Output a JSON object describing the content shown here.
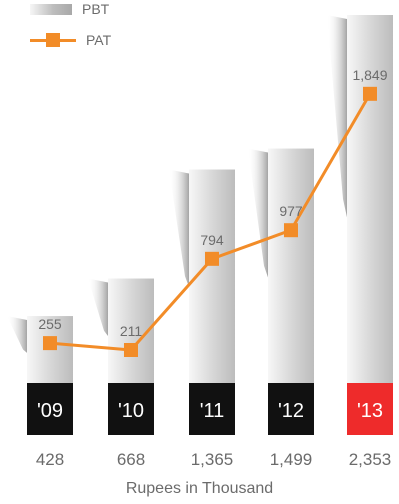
{
  "legend": {
    "pbt_label": "PBT",
    "pat_label": "PAT"
  },
  "caption": "Rupees in Thousand",
  "chart_data": {
    "type": "bar",
    "categories": [
      "'09",
      "'10",
      "'11",
      "'12",
      "'13"
    ],
    "series": [
      {
        "name": "PBT",
        "kind": "bar",
        "values": [
          428,
          668,
          1365,
          1499,
          2353
        ],
        "labels": [
          "428",
          "668",
          "1,365",
          "1,499",
          "2,353"
        ],
        "color": "#d0d0d0"
      },
      {
        "name": "PAT",
        "kind": "line",
        "values": [
          255,
          211,
          794,
          977,
          1849
        ],
        "labels": [
          "255",
          "211",
          "794",
          "977",
          "1,849"
        ],
        "color": "#f28c28"
      }
    ],
    "category_badge_colors": [
      "#111111",
      "#111111",
      "#111111",
      "#111111",
      "#ee2b2b"
    ],
    "ylim": [
      0,
      2353
    ],
    "title": "",
    "xlabel": "Rupees in Thousand",
    "ylabel": "",
    "legend_position": "top-left",
    "grid": false
  }
}
